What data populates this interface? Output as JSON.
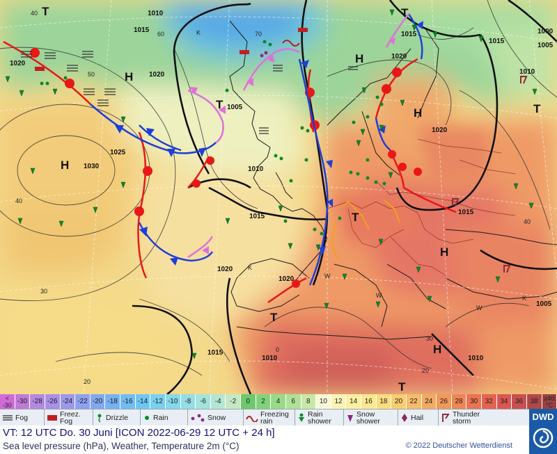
{
  "map": {
    "isobar_labels": [
      "1010",
      "1015",
      "1020",
      "1025",
      "1030",
      "1020",
      "1005",
      "1010",
      "1015",
      "1020",
      "1015",
      "1020",
      "1015",
      "1010",
      "1000",
      "1005",
      "1010",
      "1020",
      "1015",
      "1005",
      "1010",
      "1015",
      "1020"
    ],
    "pressure_centers": [
      "H",
      "H",
      "H",
      "H",
      "H",
      "H",
      "T",
      "T",
      "T",
      "T",
      "T",
      "T",
      "T"
    ],
    "small_labels": [
      "40",
      "50",
      "70",
      "60",
      "40",
      "30",
      "20",
      "40",
      "30",
      "20",
      "K",
      "K",
      "K",
      "W",
      "W",
      "W",
      "0"
    ]
  },
  "temperature_scale": {
    "labels": [
      "<\n-30",
      "-30",
      "-28",
      "-26",
      "-24",
      "-22",
      "-20",
      "-18",
      "-16",
      "-14",
      "-12",
      "-10",
      "-8",
      "-6",
      "-4",
      "-2",
      "0",
      "2",
      "4",
      "6",
      "8",
      "10",
      "12",
      "14",
      "16",
      "18",
      "20",
      "22",
      "24",
      "26",
      "28",
      "30",
      "32",
      "34",
      "36",
      "38",
      "≥40\n°C"
    ],
    "colors": [
      "#d06ad8",
      "#c07ad8",
      "#b488e0",
      "#a890e8",
      "#9c98ec",
      "#8fa0f0",
      "#82a8f0",
      "#78b0f2",
      "#72bcf4",
      "#6cc6f4",
      "#78d0f0",
      "#86d8ec",
      "#94dde6",
      "#a4e2de",
      "#b4e6d4",
      "#c4e8c4",
      "#6ec86e",
      "#82d27a",
      "#98da88",
      "#b0e098",
      "#c8e8a8",
      "#f8f8d8",
      "#fbf4b8",
      "#fcf0a0",
      "#fbe890",
      "#fadc80",
      "#f8cc70",
      "#f6bc68",
      "#f4aa60",
      "#f29858",
      "#ef8654",
      "#eb7452",
      "#e46450",
      "#db5650",
      "#c85050",
      "#b04848",
      "#9a4040"
    ]
  },
  "legend": {
    "items": [
      {
        "label": "Fog",
        "icon": "fog-icon"
      },
      {
        "label": "Freez.\nFog",
        "icon": "freezing-fog-icon"
      },
      {
        "label": "Drizzle",
        "icon": "drizzle-icon"
      },
      {
        "label": "Rain",
        "icon": "rain-icon"
      },
      {
        "label": "Snow",
        "icon": "snow-icon"
      },
      {
        "label": "Freezing\nrain",
        "icon": "freezing-rain-icon"
      },
      {
        "label": "Rain\nshower",
        "icon": "rain-shower-icon"
      },
      {
        "label": "Snow\nshower",
        "icon": "snow-shower-icon"
      },
      {
        "label": "Hail",
        "icon": "hail-icon"
      },
      {
        "label": "Thunder\nstorm",
        "icon": "thunderstorm-icon"
      }
    ]
  },
  "footer": {
    "valid_time": "VT: 12 UTC Do.   30 Juni [ICON 2022-06-29  12 UTC + 24 h]",
    "description": "Sea level pressure (hPa), Weather, Temperature 2m (°C)",
    "copyright": "© 2022 Deutscher Wetterdienst"
  },
  "logo": {
    "text": "DWD"
  },
  "colors": {
    "cold_front": "#1f3fd8",
    "warm_front": "#e81818",
    "occlusion": "#e070d8",
    "trough": "#f0a020",
    "isobar": "#202020"
  }
}
